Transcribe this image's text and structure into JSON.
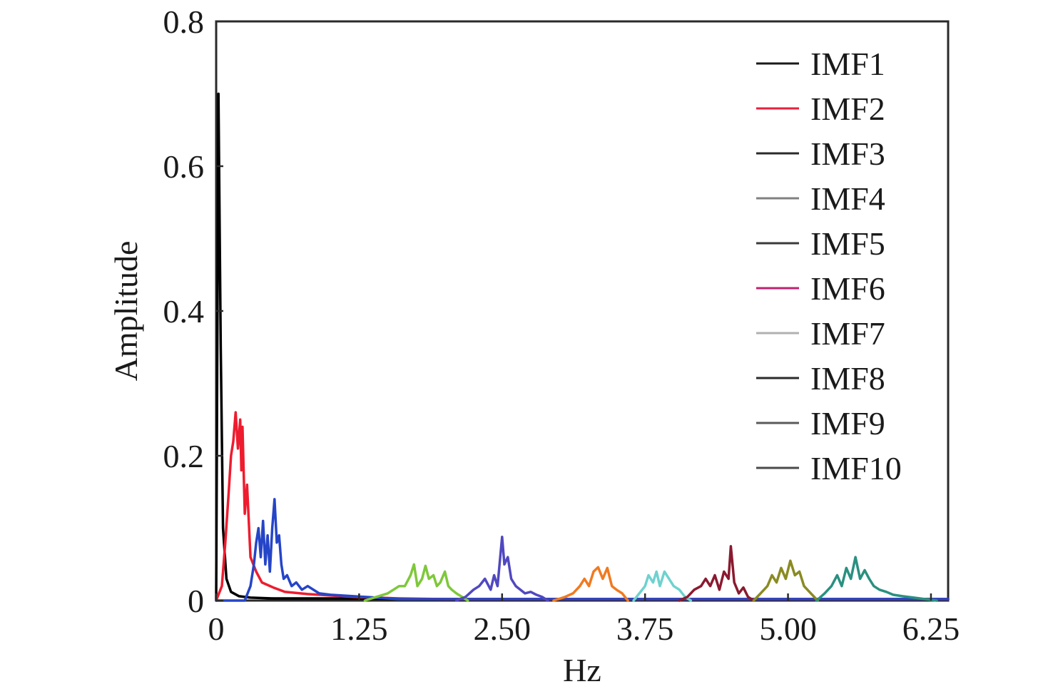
{
  "chart_data": {
    "type": "line",
    "xlabel": "Hz",
    "ylabel": "Amplitude",
    "xlim": [
      0,
      6.4
    ],
    "ylim": [
      0,
      0.8
    ],
    "x_ticks": [
      {
        "value": 0,
        "label": "0"
      },
      {
        "value": 1.25,
        "label": "1.25"
      },
      {
        "value": 2.5,
        "label": "2.50"
      },
      {
        "value": 3.75,
        "label": "3.75"
      },
      {
        "value": 5.0,
        "label": "5.00"
      },
      {
        "value": 6.25,
        "label": "6.25"
      }
    ],
    "y_ticks": [
      {
        "value": 0,
        "label": "0"
      },
      {
        "value": 0.2,
        "label": "0.2"
      },
      {
        "value": 0.4,
        "label": "0.4"
      },
      {
        "value": 0.6,
        "label": "0.6"
      },
      {
        "value": 0.8,
        "label": "0.8"
      }
    ],
    "legend_position": "top-right",
    "grid": false,
    "series": [
      {
        "name": "IMF1",
        "legend_color": "#1a1a1a",
        "color": "#000000",
        "x": [
          0,
          0.02,
          0.04,
          0.06,
          0.09,
          0.13,
          0.2,
          0.3,
          0.5,
          1.0,
          2.0,
          3.0,
          4.0,
          5.0,
          6.0,
          6.4
        ],
        "y": [
          0,
          0.7,
          0.35,
          0.1,
          0.03,
          0.012,
          0.006,
          0.004,
          0.003,
          0.003,
          0.002,
          0.002,
          0.002,
          0.002,
          0.002,
          0.002
        ]
      },
      {
        "name": "IMF2",
        "legend_color": "#e8213c",
        "color": "#ee1c2e",
        "x": [
          0.0,
          0.05,
          0.08,
          0.11,
          0.13,
          0.15,
          0.17,
          0.19,
          0.21,
          0.22,
          0.23,
          0.25,
          0.27,
          0.3,
          0.35,
          0.4,
          0.5,
          0.6,
          0.8,
          1.0,
          1.2,
          1.4,
          1.6,
          2.0,
          6.4
        ],
        "y": [
          0.0,
          0.02,
          0.08,
          0.15,
          0.2,
          0.22,
          0.26,
          0.21,
          0.25,
          0.18,
          0.24,
          0.12,
          0.16,
          0.06,
          0.04,
          0.025,
          0.018,
          0.012,
          0.009,
          0.007,
          0.005,
          0.004,
          0.003,
          0.002,
          0.002
        ]
      },
      {
        "name": "IMF3",
        "legend_color": "#2a2a2a",
        "color": "#2545c8",
        "x": [
          0.0,
          0.25,
          0.3,
          0.33,
          0.35,
          0.37,
          0.39,
          0.41,
          0.43,
          0.45,
          0.47,
          0.49,
          0.51,
          0.53,
          0.55,
          0.57,
          0.59,
          0.62,
          0.66,
          0.7,
          0.75,
          0.8,
          0.9,
          1.0,
          1.2,
          1.4,
          1.6,
          6.4
        ],
        "y": [
          0.0,
          0.0,
          0.02,
          0.05,
          0.08,
          0.1,
          0.06,
          0.11,
          0.05,
          0.09,
          0.04,
          0.1,
          0.14,
          0.08,
          0.09,
          0.05,
          0.03,
          0.035,
          0.02,
          0.025,
          0.015,
          0.02,
          0.01,
          0.008,
          0.006,
          0.004,
          0.002,
          0.002
        ]
      },
      {
        "name": "IMF4",
        "legend_color": "#808080",
        "color": "#7ec83a",
        "x": [
          1.3,
          1.4,
          1.5,
          1.55,
          1.6,
          1.65,
          1.7,
          1.73,
          1.76,
          1.8,
          1.83,
          1.86,
          1.9,
          1.93,
          1.96,
          2.0,
          2.03,
          2.06,
          2.1,
          2.15,
          2.2
        ],
        "y": [
          0.0,
          0.005,
          0.01,
          0.015,
          0.02,
          0.02,
          0.035,
          0.05,
          0.02,
          0.03,
          0.048,
          0.03,
          0.035,
          0.02,
          0.025,
          0.04,
          0.02,
          0.015,
          0.01,
          0.005,
          0.0
        ]
      },
      {
        "name": "IMF5",
        "legend_color": "#3a3a3a",
        "color": "#5048c0",
        "x": [
          2.1,
          2.18,
          2.25,
          2.3,
          2.35,
          2.4,
          2.43,
          2.46,
          2.5,
          2.52,
          2.55,
          2.58,
          2.62,
          2.66,
          2.7,
          2.75,
          2.8,
          2.85,
          2.9
        ],
        "y": [
          0.0,
          0.005,
          0.015,
          0.02,
          0.03,
          0.015,
          0.035,
          0.02,
          0.088,
          0.05,
          0.06,
          0.03,
          0.02,
          0.015,
          0.01,
          0.012,
          0.008,
          0.005,
          0.0
        ]
      },
      {
        "name": "IMF6",
        "legend_color": "#c02070",
        "color": "#f07a20",
        "x": [
          2.95,
          3.05,
          3.12,
          3.18,
          3.22,
          3.26,
          3.3,
          3.34,
          3.38,
          3.42,
          3.46,
          3.5,
          3.55,
          3.6
        ],
        "y": [
          0.0,
          0.005,
          0.01,
          0.02,
          0.03,
          0.02,
          0.04,
          0.046,
          0.03,
          0.045,
          0.02,
          0.015,
          0.01,
          0.0
        ]
      },
      {
        "name": "IMF7",
        "legend_color": "#b0b0b0",
        "color": "#6ed2cf",
        "x": [
          3.65,
          3.7,
          3.75,
          3.78,
          3.82,
          3.85,
          3.88,
          3.92,
          3.96,
          4.0,
          4.05,
          4.1,
          4.15
        ],
        "y": [
          0.0,
          0.01,
          0.02,
          0.035,
          0.025,
          0.04,
          0.02,
          0.04,
          0.03,
          0.02,
          0.015,
          0.005,
          0.0
        ]
      },
      {
        "name": "IMF8",
        "legend_color": "#2a2a2a",
        "color": "#8a1a30",
        "x": [
          4.05,
          4.12,
          4.18,
          4.24,
          4.28,
          4.32,
          4.36,
          4.4,
          4.44,
          4.48,
          4.5,
          4.53,
          4.57,
          4.61,
          4.65,
          4.7
        ],
        "y": [
          0.0,
          0.005,
          0.015,
          0.02,
          0.03,
          0.02,
          0.035,
          0.015,
          0.04,
          0.03,
          0.075,
          0.025,
          0.01,
          0.018,
          0.005,
          0.0
        ]
      },
      {
        "name": "IMF9",
        "legend_color": "#5a5a5a",
        "color": "#8a8a22",
        "x": [
          4.7,
          4.76,
          4.82,
          4.86,
          4.9,
          4.94,
          4.98,
          5.02,
          5.06,
          5.1,
          5.14,
          5.2,
          5.26
        ],
        "y": [
          0.0,
          0.01,
          0.02,
          0.035,
          0.025,
          0.045,
          0.03,
          0.055,
          0.035,
          0.04,
          0.02,
          0.01,
          0.0
        ]
      },
      {
        "name": "IMF10",
        "legend_color": "#4a4a4a",
        "color": "#2a9080",
        "x": [
          5.25,
          5.32,
          5.38,
          5.43,
          5.47,
          5.51,
          5.55,
          5.59,
          5.63,
          5.67,
          5.71,
          5.75,
          5.8,
          5.86,
          5.92,
          6.0,
          6.1,
          6.2,
          6.3
        ],
        "y": [
          0.0,
          0.01,
          0.02,
          0.035,
          0.02,
          0.045,
          0.03,
          0.06,
          0.03,
          0.042,
          0.03,
          0.02,
          0.015,
          0.012,
          0.008,
          0.006,
          0.004,
          0.002,
          0.0
        ]
      }
    ]
  }
}
